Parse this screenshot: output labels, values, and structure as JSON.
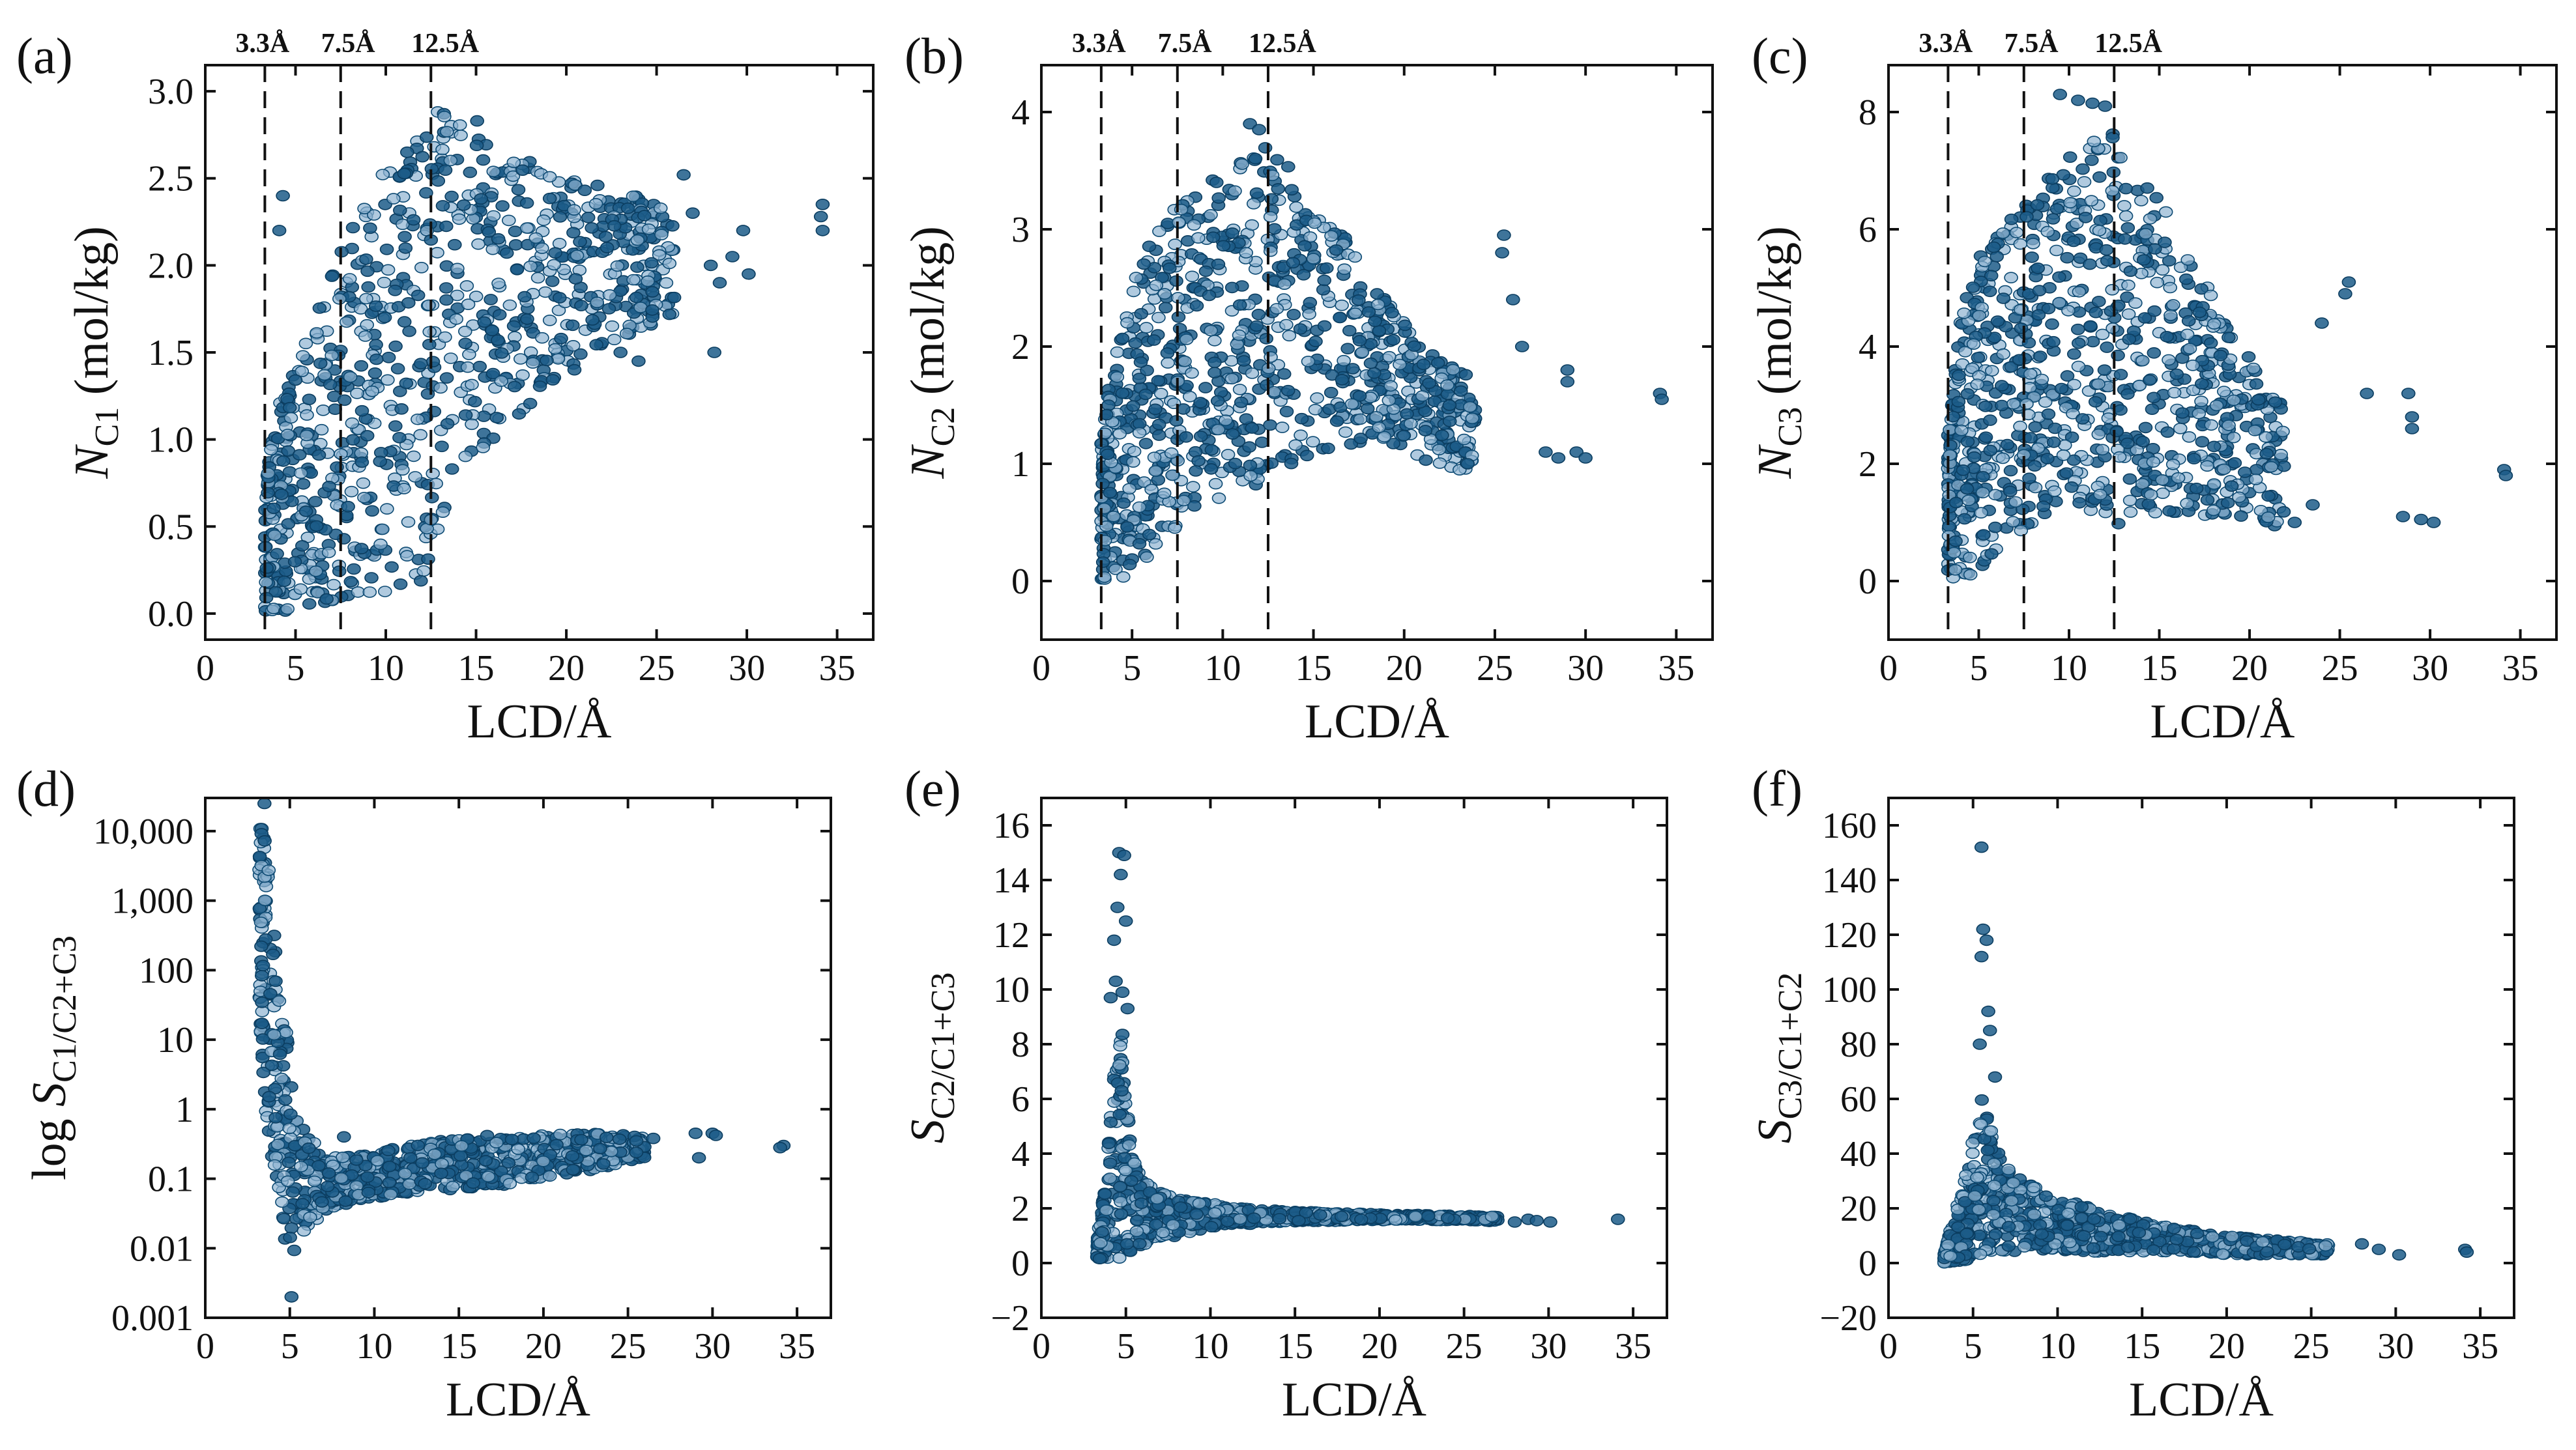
{
  "chart_data": [
    {
      "id": "a",
      "type": "scatter",
      "panel_label": "(a)",
      "xlabel": "LCD/Å",
      "ylabel": "N_C1 (mol/kg)",
      "ylabel_parts": {
        "italic": "N",
        "sub": "C1",
        "rest": " (mol/kg)"
      },
      "xlim": [
        0,
        37
      ],
      "ylim": [
        -0.15,
        3.15
      ],
      "xticks": [
        0,
        5,
        10,
        15,
        20,
        25,
        30,
        35
      ],
      "xtick_labels": [
        "0",
        "5",
        "10",
        "15",
        "20",
        "25",
        "30",
        "35"
      ],
      "yticks": [
        0.0,
        0.5,
        1.0,
        1.5,
        2.0,
        2.5,
        3.0
      ],
      "ytick_labels": [
        "0.0",
        "0.5",
        "1.0",
        "1.5",
        "2.0",
        "2.5",
        "3.0"
      ],
      "scale": "linear",
      "vlines": [
        3.3,
        7.5,
        12.5
      ],
      "vline_labels": [
        "3.3Å",
        "7.5Å",
        "12.5Å"
      ],
      "point_color": "#1c5c88",
      "density": {
        "x": [
          3.3,
          4,
          5,
          6,
          7.5,
          9,
          10,
          11,
          12,
          12.5,
          13,
          14,
          15,
          16,
          17,
          18,
          19,
          20,
          21,
          22,
          24,
          26
        ],
        "lo": [
          0.0,
          0.0,
          0.02,
          0.04,
          0.08,
          0.1,
          0.12,
          0.15,
          0.18,
          0.2,
          0.5,
          0.75,
          0.9,
          1.0,
          1.1,
          1.2,
          1.3,
          1.35,
          1.45,
          1.55,
          1.6,
          1.7
        ],
        "hi": [
          0.7,
          1.2,
          1.4,
          1.7,
          2.1,
          2.4,
          2.55,
          2.7,
          2.8,
          2.85,
          2.9,
          2.9,
          2.85,
          2.75,
          2.65,
          2.6,
          2.55,
          2.5,
          2.5,
          2.45,
          2.4,
          2.3
        ]
      },
      "outliers": [
        [
          4.3,
          2.4
        ],
        [
          4.1,
          2.2
        ],
        [
          26.5,
          2.52
        ],
        [
          27.0,
          2.3
        ],
        [
          28.0,
          2.0
        ],
        [
          28.5,
          1.9
        ],
        [
          29.2,
          2.05
        ],
        [
          29.8,
          2.2
        ],
        [
          30.1,
          1.95
        ],
        [
          28.2,
          1.5
        ],
        [
          34.2,
          2.35
        ],
        [
          34.2,
          2.2
        ],
        [
          34.1,
          2.28
        ],
        [
          23.0,
          1.5
        ],
        [
          24.0,
          1.45
        ]
      ]
    },
    {
      "id": "b",
      "type": "scatter",
      "panel_label": "(b)",
      "xlabel": "LCD/Å",
      "ylabel": "N_C2 (mol/kg)",
      "ylabel_parts": {
        "italic": "N",
        "sub": "C2",
        "rest": " (mol/kg)"
      },
      "xlim": [
        0,
        37
      ],
      "ylim": [
        -0.5,
        4.4
      ],
      "xticks": [
        0,
        5,
        10,
        15,
        20,
        25,
        30,
        35
      ],
      "xtick_labels": [
        "0",
        "5",
        "10",
        "15",
        "20",
        "25",
        "30",
        "35"
      ],
      "yticks": [
        0,
        1,
        2,
        3,
        4
      ],
      "ytick_labels": [
        "0",
        "1",
        "2",
        "3",
        "4"
      ],
      "scale": "linear",
      "vlines": [
        3.3,
        7.5,
        12.5
      ],
      "vline_labels": [
        "3.3Å",
        "7.5Å",
        "12.5Å"
      ],
      "point_color": "#1c5c88",
      "density": {
        "x": [
          3.3,
          4,
          5,
          6,
          7.5,
          9,
          10,
          11,
          12,
          12.5,
          13,
          14,
          15,
          16,
          17,
          18,
          19,
          20,
          21,
          22,
          24
        ],
        "lo": [
          0.0,
          0.0,
          0.05,
          0.2,
          0.4,
          0.6,
          0.7,
          0.8,
          0.8,
          0.8,
          1.0,
          1.0,
          1.05,
          1.1,
          1.15,
          1.2,
          1.2,
          1.1,
          1.0,
          0.95,
          0.9
        ],
        "hi": [
          1.2,
          2.0,
          2.6,
          2.9,
          3.2,
          3.4,
          3.5,
          3.6,
          3.7,
          3.75,
          3.6,
          3.5,
          3.3,
          3.1,
          2.9,
          2.6,
          2.4,
          2.2,
          2.0,
          1.9,
          1.7
        ]
      },
      "outliers": [
        [
          11.5,
          3.9
        ],
        [
          12.0,
          3.85
        ],
        [
          25.5,
          2.95
        ],
        [
          25.4,
          2.8
        ],
        [
          26.0,
          2.4
        ],
        [
          26.5,
          2.0
        ],
        [
          27.8,
          1.1
        ],
        [
          28.5,
          1.05
        ],
        [
          29.5,
          1.1
        ],
        [
          30.0,
          1.05
        ],
        [
          29.0,
          1.8
        ],
        [
          29.0,
          1.7
        ],
        [
          34.1,
          1.6
        ],
        [
          34.2,
          1.55
        ],
        [
          22.5,
          1.5
        ],
        [
          23.5,
          1.0
        ]
      ]
    },
    {
      "id": "c",
      "type": "scatter",
      "panel_label": "(c)",
      "xlabel": "LCD/Å",
      "ylabel": "N_C3 (mol/kg)",
      "ylabel_parts": {
        "italic": "N",
        "sub": "C3",
        "rest": " (mol/kg)"
      },
      "xlim": [
        0,
        37
      ],
      "ylim": [
        -1.0,
        8.8
      ],
      "xticks": [
        0,
        5,
        10,
        15,
        20,
        25,
        30,
        35
      ],
      "xtick_labels": [
        "0",
        "5",
        "10",
        "15",
        "20",
        "25",
        "30",
        "35"
      ],
      "yticks": [
        0,
        2,
        4,
        6,
        8
      ],
      "ytick_labels": [
        "0",
        "2",
        "4",
        "6",
        "8"
      ],
      "scale": "linear",
      "vlines": [
        3.3,
        7.5,
        12.5
      ],
      "vline_labels": [
        "3.3Å",
        "7.5Å",
        "12.5Å"
      ],
      "point_color": "#1c5c88",
      "density": {
        "x": [
          3.3,
          4,
          5,
          6,
          7.5,
          9,
          10,
          11,
          12,
          12.5,
          13,
          14,
          15,
          16,
          17,
          18,
          19,
          20,
          21,
          22
        ],
        "lo": [
          0.0,
          0.0,
          0.2,
          0.5,
          0.9,
          1.2,
          1.3,
          1.1,
          1.0,
          0.9,
          1.0,
          1.0,
          1.05,
          1.1,
          1.1,
          1.1,
          1.0,
          1.0,
          0.95,
          0.9
        ],
        "hi": [
          2.5,
          4.5,
          5.5,
          6.0,
          6.5,
          7.0,
          7.3,
          7.5,
          7.6,
          7.7,
          7.5,
          7.0,
          6.5,
          6.0,
          5.5,
          4.8,
          4.3,
          3.9,
          3.5,
          3.3
        ]
      },
      "outliers": [
        [
          9.5,
          8.3
        ],
        [
          10.5,
          8.2
        ],
        [
          11.3,
          8.15
        ],
        [
          12.0,
          8.1
        ],
        [
          25.5,
          5.1
        ],
        [
          25.3,
          4.9
        ],
        [
          24.0,
          4.4
        ],
        [
          26.5,
          3.2
        ],
        [
          28.8,
          3.2
        ],
        [
          29.0,
          2.8
        ],
        [
          29.0,
          2.6
        ],
        [
          28.5,
          1.1
        ],
        [
          29.5,
          1.05
        ],
        [
          30.2,
          1.0
        ],
        [
          34.1,
          1.9
        ],
        [
          34.2,
          1.8
        ],
        [
          22.5,
          1.0
        ],
        [
          23.5,
          1.3
        ]
      ]
    },
    {
      "id": "d",
      "type": "scatter",
      "panel_label": "(d)",
      "xlabel": "LCD/Å",
      "ylabel": "log S_C1/C2+C3",
      "ylabel_parts": {
        "prefix": "log ",
        "italic": "S",
        "sub": "C1/C2+C3",
        "rest": ""
      },
      "xlim": [
        0,
        37
      ],
      "ylim": [
        0.001,
        30000
      ],
      "xticks": [
        0,
        5,
        10,
        15,
        20,
        25,
        30,
        35
      ],
      "xtick_labels": [
        "0",
        "5",
        "10",
        "15",
        "20",
        "25",
        "30",
        "35"
      ],
      "yticks": [
        0.001,
        0.01,
        0.1,
        1,
        10,
        100,
        1000,
        10000
      ],
      "ytick_labels": [
        "0.001",
        "0.01",
        "0.1",
        "1",
        "10",
        "100",
        "1,000",
        "10,000"
      ],
      "scale": "log",
      "vlines": [],
      "vline_labels": [],
      "point_color": "#1c5c88",
      "density": {
        "x": [
          3.2,
          3.5,
          3.8,
          4.1,
          4.5,
          5,
          5.5,
          6,
          7,
          8,
          10,
          12,
          15,
          18,
          20,
          22,
          24,
          26
        ],
        "lo": [
          10,
          1,
          0.3,
          0.08,
          0.02,
          0.005,
          0.01,
          0.02,
          0.03,
          0.04,
          0.05,
          0.06,
          0.07,
          0.08,
          0.1,
          0.12,
          0.15,
          0.2
        ],
        "hi": [
          12000,
          10000,
          3000,
          300,
          30,
          3,
          0.8,
          0.4,
          0.25,
          0.2,
          0.25,
          0.3,
          0.4,
          0.45,
          0.45,
          0.45,
          0.45,
          0.4
        ]
      },
      "outliers": [
        [
          3.5,
          25000
        ],
        [
          5.1,
          0.002
        ],
        [
          8.2,
          0.4
        ],
        [
          29.0,
          0.45
        ],
        [
          30.0,
          0.45
        ],
        [
          30.2,
          0.42
        ],
        [
          29.2,
          0.2
        ],
        [
          34.2,
          0.3
        ],
        [
          34.0,
          0.28
        ],
        [
          25.5,
          0.35
        ],
        [
          26.5,
          0.38
        ]
      ]
    },
    {
      "id": "e",
      "type": "scatter",
      "panel_label": "(e)",
      "xlabel": "LCD/Å",
      "ylabel": "S_C2/C1+C3",
      "ylabel_parts": {
        "italic": "S",
        "sub": "C2/C1+C3",
        "rest": ""
      },
      "xlim": [
        0,
        37
      ],
      "ylim": [
        -2,
        17
      ],
      "xticks": [
        0,
        5,
        10,
        15,
        20,
        25,
        30,
        35
      ],
      "xtick_labels": [
        "0",
        "5",
        "10",
        "15",
        "20",
        "25",
        "30",
        "35"
      ],
      "yticks": [
        -2,
        0,
        2,
        4,
        6,
        8,
        10,
        12,
        14,
        16
      ],
      "ytick_labels": [
        "−2",
        "0",
        "2",
        "4",
        "6",
        "8",
        "10",
        "12",
        "14",
        "16"
      ],
      "scale": "linear",
      "vlines": [],
      "vline_labels": [],
      "point_color": "#1c5c88",
      "density": {
        "x": [
          3.3,
          3.8,
          4.3,
          4.8,
          5.3,
          6,
          7,
          8,
          10,
          12,
          15,
          20,
          25,
          27
        ],
        "lo": [
          0.0,
          0.0,
          0.1,
          0.2,
          0.4,
          0.6,
          0.8,
          1.0,
          1.3,
          1.4,
          1.5,
          1.55,
          1.55,
          1.5
        ],
        "hi": [
          0.8,
          3.0,
          7.0,
          8.5,
          4.0,
          3.0,
          2.6,
          2.4,
          2.2,
          2.0,
          1.9,
          1.8,
          1.75,
          1.7
        ]
      },
      "outliers": [
        [
          4.6,
          15.0
        ],
        [
          4.9,
          14.9
        ],
        [
          4.7,
          14.2
        ],
        [
          4.5,
          13.0
        ],
        [
          4.3,
          11.8
        ],
        [
          5.0,
          12.5
        ],
        [
          4.4,
          10.3
        ],
        [
          4.1,
          9.7
        ],
        [
          5.1,
          9.3
        ],
        [
          4.8,
          9.9
        ],
        [
          28.8,
          1.6
        ],
        [
          29.3,
          1.55
        ],
        [
          30.1,
          1.5
        ],
        [
          34.1,
          1.6
        ],
        [
          28.0,
          1.5
        ]
      ]
    },
    {
      "id": "f",
      "type": "scatter",
      "panel_label": "(f)",
      "xlabel": "LCD/Å",
      "ylabel": "S_C3/C1+C2",
      "ylabel_parts": {
        "italic": "S",
        "sub": "C3/C1+C2",
        "rest": ""
      },
      "xlim": [
        0,
        37
      ],
      "ylim": [
        -20,
        170
      ],
      "xticks": [
        0,
        5,
        10,
        15,
        20,
        25,
        30,
        35
      ],
      "xtick_labels": [
        "0",
        "5",
        "10",
        "15",
        "20",
        "25",
        "30",
        "35"
      ],
      "yticks": [
        -20,
        0,
        20,
        40,
        60,
        80,
        100,
        120,
        140,
        160
      ],
      "ytick_labels": [
        "−20",
        "0",
        "20",
        "40",
        "60",
        "80",
        "100",
        "120",
        "140",
        "160"
      ],
      "scale": "linear",
      "vlines": [],
      "vline_labels": [],
      "point_color": "#1c5c88",
      "density": {
        "x": [
          3.3,
          4,
          5,
          5.5,
          6,
          7,
          8,
          9,
          10,
          12,
          14,
          16,
          18,
          20,
          22,
          24,
          26
        ],
        "lo": [
          0,
          0,
          1,
          2,
          3,
          4,
          4,
          4,
          4,
          4,
          4,
          4,
          4,
          3,
          3,
          3,
          3
        ],
        "hi": [
          3,
          20,
          45,
          60,
          50,
          35,
          30,
          28,
          25,
          20,
          17,
          14,
          12,
          10,
          9,
          8,
          7
        ]
      },
      "outliers": [
        [
          5.5,
          152
        ],
        [
          5.6,
          122
        ],
        [
          5.8,
          118
        ],
        [
          5.5,
          112
        ],
        [
          5.9,
          92
        ],
        [
          6.0,
          85
        ],
        [
          6.3,
          68
        ],
        [
          5.4,
          80
        ],
        [
          28.0,
          7
        ],
        [
          29.0,
          5
        ],
        [
          30.2,
          3
        ],
        [
          34.1,
          5
        ],
        [
          34.2,
          4
        ]
      ]
    }
  ]
}
